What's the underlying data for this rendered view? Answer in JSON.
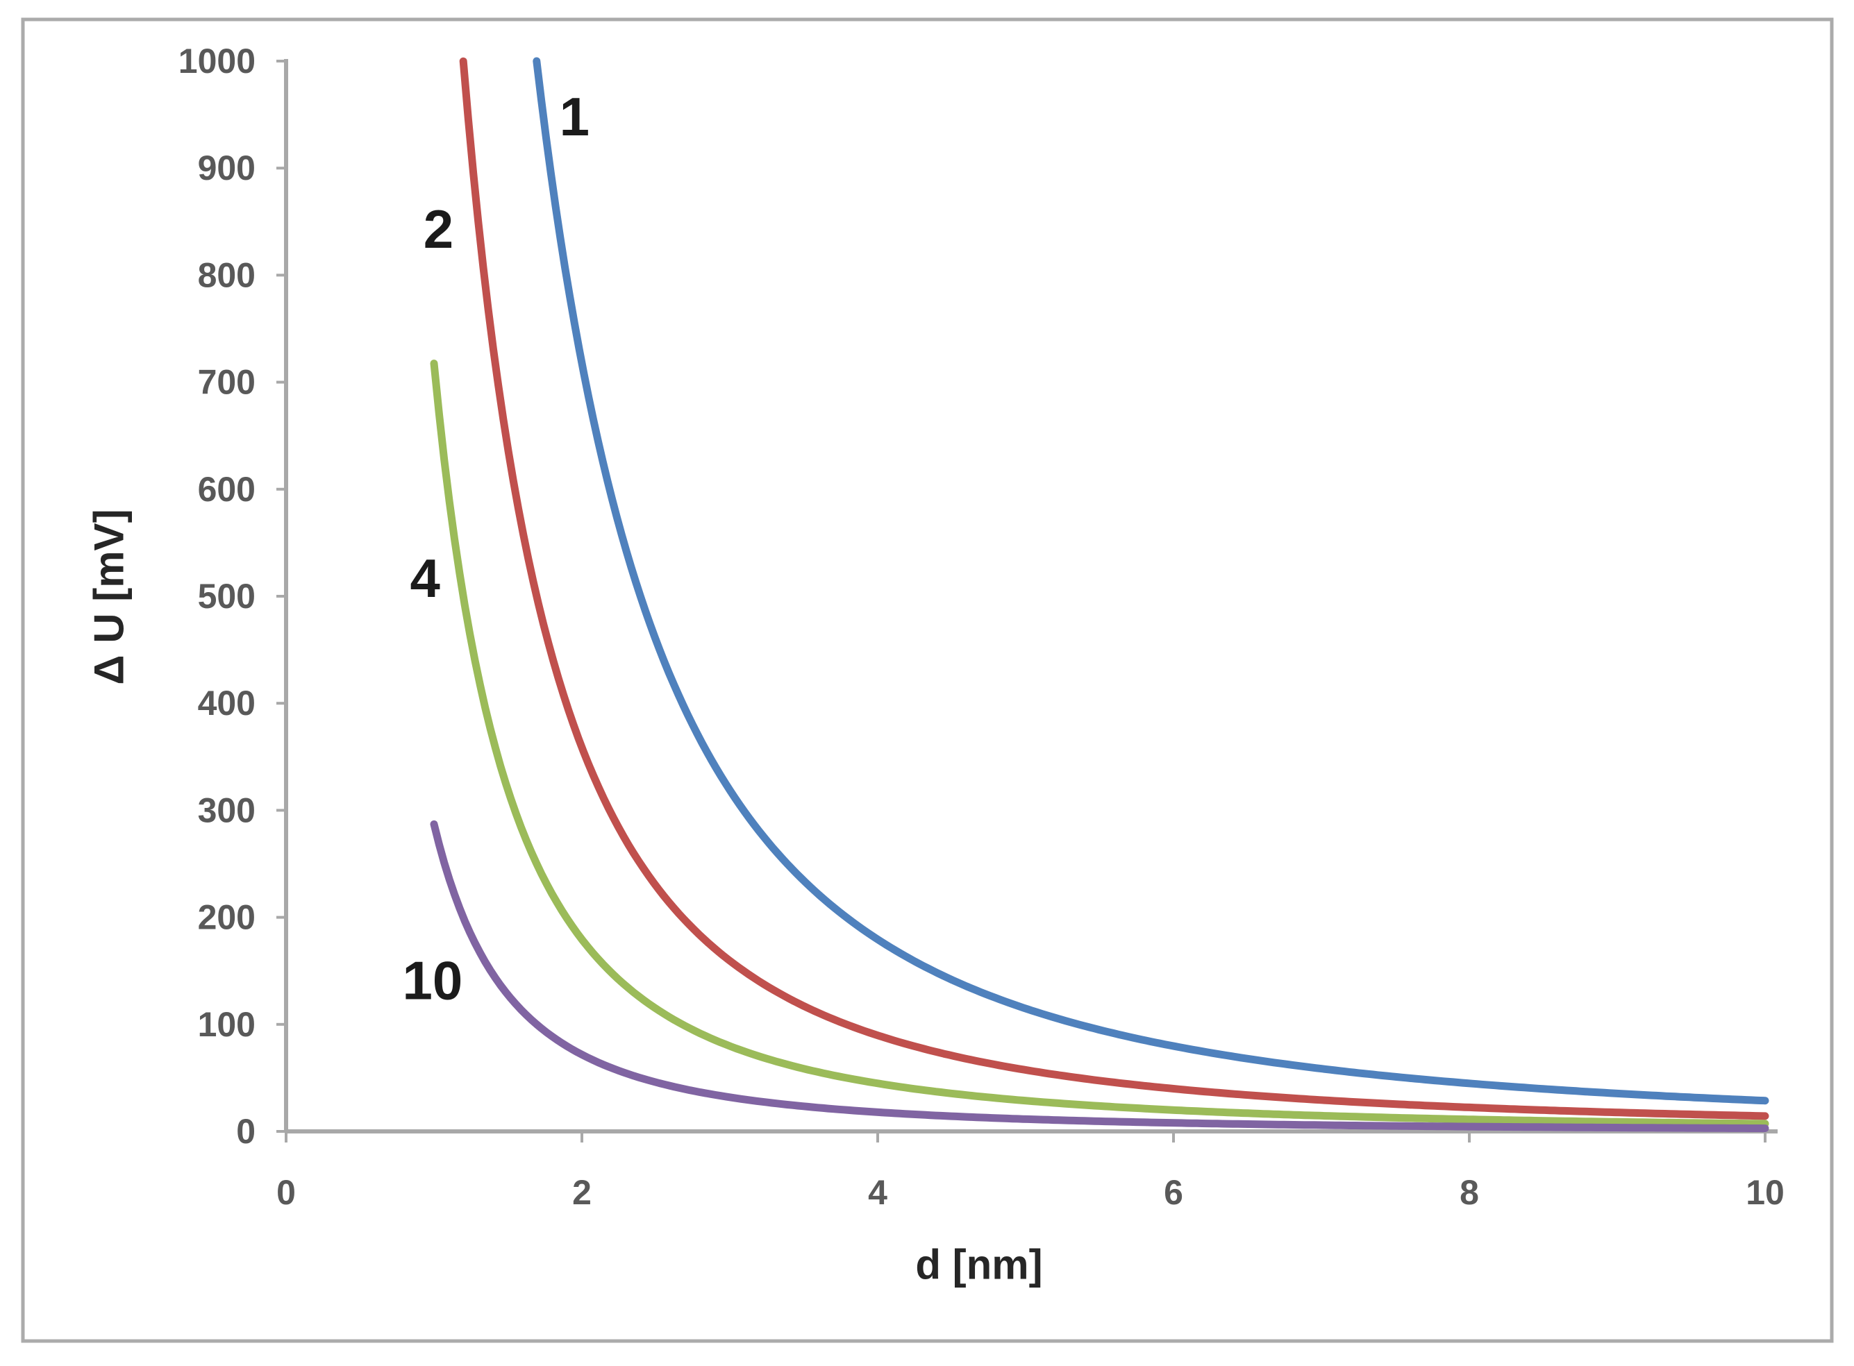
{
  "figure": {
    "background": "#ffffff",
    "frame_color": "#ababab"
  },
  "axes_style": {
    "axis_line_color": "#a8a8a8",
    "tick_mark_color": "#a8a8a8",
    "tick_label_color": "#595959",
    "axis_title_color": "#262626"
  },
  "chart_data": {
    "type": "line",
    "title": "",
    "xlabel": "d [nm]",
    "ylabel": "Δ U [mV]",
    "xlim": [
      0,
      10
    ],
    "ylim": [
      0,
      1000
    ],
    "x_ticks": [
      0,
      2,
      4,
      6,
      8,
      10
    ],
    "y_ticks": [
      0,
      100,
      200,
      300,
      400,
      500,
      600,
      700,
      800,
      900,
      1000
    ],
    "grid": false,
    "legend_position": "inline-curve-labels",
    "model": "deltaU = k / (n * d^2), clipped at 1000 mV, plotted for d = 1..10 nm",
    "k": 2870,
    "series": [
      {
        "label": "1",
        "n": 1,
        "color": "#4f81bd",
        "d_start": 1.694,
        "label_at": {
          "d": 1.95,
          "v": 948
        },
        "d": [
          1.7,
          2,
          2.5,
          3,
          3.5,
          4,
          5,
          6,
          7,
          8,
          9,
          10
        ],
        "v": [
          993,
          717.5,
          459.2,
          318.9,
          234.3,
          179.4,
          114.8,
          79.7,
          58.6,
          44.8,
          35.4,
          28.7
        ]
      },
      {
        "label": "2",
        "n": 2,
        "color": "#c0504d",
        "d_start": 1.198,
        "label_at": {
          "d": 1.03,
          "v": 843
        },
        "d": [
          1.2,
          1.5,
          2,
          2.5,
          3,
          3.5,
          4,
          5,
          6,
          7,
          8,
          9,
          10
        ],
        "v": [
          996.5,
          637.8,
          358.8,
          229.6,
          159.4,
          117.1,
          89.7,
          57.4,
          39.9,
          29.3,
          22.4,
          17.7,
          14.4
        ]
      },
      {
        "label": "4",
        "n": 4,
        "color": "#9bbb59",
        "d_start": 1.0,
        "label_at": {
          "d": 0.94,
          "v": 517
        },
        "d": [
          1,
          1.5,
          2,
          2.5,
          3,
          3.5,
          4,
          5,
          6,
          7,
          8,
          9,
          10
        ],
        "v": [
          717.5,
          318.9,
          179.4,
          114.8,
          79.7,
          58.6,
          44.8,
          28.7,
          19.9,
          14.6,
          11.2,
          8.9,
          7.2
        ]
      },
      {
        "label": "10",
        "n": 10,
        "color": "#8064a2",
        "d_start": 1.0,
        "label_at": {
          "d": 0.99,
          "v": 141
        },
        "d": [
          1,
          1.5,
          2,
          2.5,
          3,
          3.5,
          4,
          5,
          6,
          7,
          8,
          9,
          10
        ],
        "v": [
          287,
          127.6,
          71.8,
          45.9,
          31.9,
          23.4,
          17.9,
          11.5,
          8,
          5.9,
          4.5,
          3.5,
          2.9
        ]
      }
    ]
  }
}
